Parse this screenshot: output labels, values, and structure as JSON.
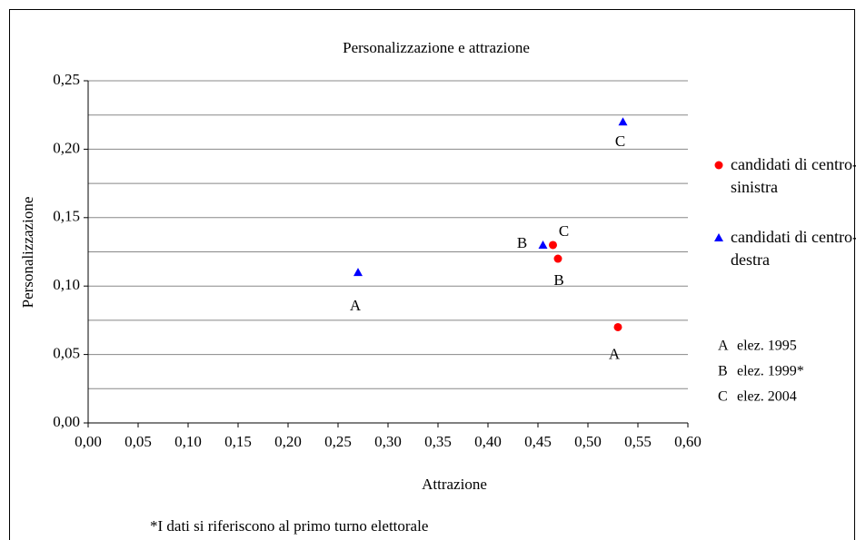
{
  "chart_data": {
    "type": "scatter",
    "title": "Personalizzazione e attrazione",
    "xlabel": "Attrazione",
    "ylabel": "Personalizzazione",
    "xlim": [
      0,
      0.6
    ],
    "ylim": [
      0,
      0.25
    ],
    "xticks": [
      {
        "value": 0,
        "label": "0,00"
      },
      {
        "value": 0.05,
        "label": "0,05"
      },
      {
        "value": 0.1,
        "label": "0,10"
      },
      {
        "value": 0.15,
        "label": "0,15"
      },
      {
        "value": 0.2,
        "label": "0,20"
      },
      {
        "value": 0.25,
        "label": "0,25"
      },
      {
        "value": 0.3,
        "label": "0,30"
      },
      {
        "value": 0.35,
        "label": "0,35"
      },
      {
        "value": 0.4,
        "label": "0,40"
      },
      {
        "value": 0.45,
        "label": "0,45"
      },
      {
        "value": 0.5,
        "label": "0,50"
      },
      {
        "value": 0.55,
        "label": "0,55"
      },
      {
        "value": 0.6,
        "label": "0,60"
      }
    ],
    "yticks": [
      {
        "value": 0,
        "label": "0,00"
      },
      {
        "value": 0.05,
        "label": "0,05"
      },
      {
        "value": 0.1,
        "label": "0,10"
      },
      {
        "value": 0.15,
        "label": "0,15"
      },
      {
        "value": 0.2,
        "label": "0,20"
      },
      {
        "value": 0.25,
        "label": "0,25"
      }
    ],
    "ygridlines": [
      0.025,
      0.05,
      0.075,
      0.1,
      0.125,
      0.15,
      0.175,
      0.2,
      0.225,
      0.25
    ],
    "grid": true,
    "series": [
      {
        "name": "candidati di centro-sinistra",
        "color": "#ff0000",
        "marker": "circle",
        "x": [
          0.53,
          0.47,
          0.465
        ],
        "values": [
          0.07,
          0.12,
          0.13
        ],
        "point_labels": [
          "A",
          "B",
          "C"
        ]
      },
      {
        "name": "candidati di centro-destra",
        "color": "#0000ff",
        "marker": "triangle",
        "x": [
          0.27,
          0.455,
          0.535
        ],
        "values": [
          0.11,
          0.13,
          0.22
        ],
        "point_labels": [
          "A",
          "B",
          "C"
        ]
      }
    ],
    "notes": [
      {
        "key": "A",
        "text": "elez. 1995"
      },
      {
        "key": "B",
        "text": "elez. 1999*"
      },
      {
        "key": "C",
        "text": "elez. 2004"
      }
    ],
    "footnote": "*I dati si riferiscono al primo turno elettorale"
  }
}
